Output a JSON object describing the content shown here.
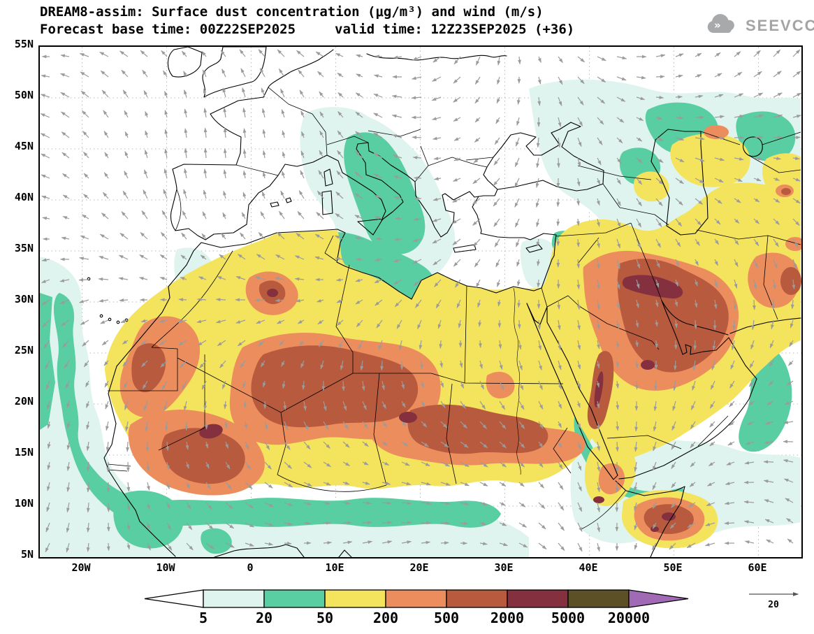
{
  "header": {
    "title": "DREAM8-assim: Surface dust concentration (μg/m³) and wind (m/s)",
    "base_time": "Forecast base time: 00Z22SEP2025",
    "valid_time": "valid time: 12Z23SEP2025 (+36)",
    "logo": "SEEVCCC"
  },
  "axes": {
    "lat_labels": [
      "55N",
      "50N",
      "45N",
      "40N",
      "35N",
      "30N",
      "25N",
      "20N",
      "15N",
      "10N",
      "5N"
    ],
    "lon_labels": [
      "20W",
      "10W",
      "0",
      "10E",
      "20E",
      "30E",
      "40E",
      "50E",
      "60E"
    ]
  },
  "colorbar": {
    "labels": [
      "5",
      "20",
      "50",
      "200",
      "500",
      "2000",
      "5000",
      "20000"
    ],
    "palette": {
      "below_min": "#ffffff",
      "c5_20": "#dff4ee",
      "c20_50": "#58cea2",
      "c50_200": "#f4e35c",
      "c200_500": "#ec8d5e",
      "c500_2000": "#b85a3d",
      "c2000_5000": "#84303f",
      "c5000_20000": "#5c5026",
      "above_max": "#a06ab5"
    }
  },
  "wind": {
    "ref_label": "20",
    "arrow_color": "#9b9b9b"
  },
  "chart_data": {
    "type": "heatmap",
    "title": "DREAM8-assim: Surface dust concentration (μg/m³) and wind (m/s)",
    "model": "DREAM8-assim",
    "variable": "surface dust concentration",
    "units": "μg/m³",
    "overlay": "wind vectors (m/s)",
    "forecast_base_time": "00Z22SEP2025",
    "valid_time": "12Z23SEP2025",
    "lead_time_hours": 36,
    "x": {
      "label": "longitude",
      "ticks": [
        "20W",
        "10W",
        "0",
        "10E",
        "20E",
        "30E",
        "40E",
        "50E",
        "60E"
      ],
      "range_deg": [
        -25,
        65
      ]
    },
    "y": {
      "label": "latitude",
      "ticks": [
        "55N",
        "50N",
        "45N",
        "40N",
        "35N",
        "30N",
        "25N",
        "20N",
        "15N",
        "10N",
        "5N"
      ],
      "range_deg": [
        5,
        55
      ]
    },
    "contour_levels_ugm3": [
      5,
      20,
      50,
      200,
      500,
      2000,
      5000,
      20000
    ],
    "level_colors": [
      "#ffffff",
      "#dff4ee",
      "#58cea2",
      "#f4e35c",
      "#ec8d5e",
      "#b85a3d",
      "#84303f",
      "#5c5026",
      "#a06ab5"
    ],
    "wind_reference_ms": 20,
    "high_dust_regions": [
      {
        "center_lonlat": [
          -8,
          17
        ],
        "level_ugm3": "2000-5000"
      },
      {
        "center_lonlat": [
          2,
          31
        ],
        "level_ugm3": "2000-5000"
      },
      {
        "center_lonlat": [
          18,
          19
        ],
        "level_ugm3": "2000-5000"
      },
      {
        "center_lonlat": [
          44,
          31
        ],
        "level_ugm3": "2000-5000"
      },
      {
        "center_lonlat": [
          47,
          10
        ],
        "level_ugm3": "2000-5000"
      },
      {
        "center_lonlat": [
          5,
          21
        ],
        "level_ugm3": "500-2000"
      },
      {
        "center_lonlat": [
          45,
          25
        ],
        "level_ugm3": "500-2000"
      },
      {
        "center_lonlat": [
          20,
          18
        ],
        "level_ugm3": "500-2000"
      }
    ]
  }
}
